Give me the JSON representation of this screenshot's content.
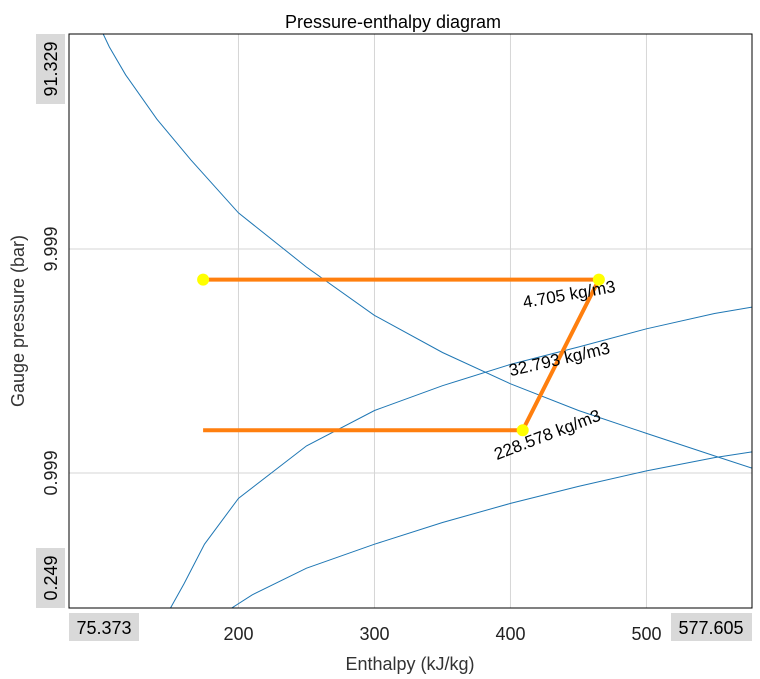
{
  "chart_data": {
    "type": "line",
    "title": "Pressure-enthalpy diagram",
    "xlabel": "Enthalpy (kJ/kg)",
    "ylabel": "Gauge pressure (bar)",
    "x_scale": "linear",
    "y_scale": "log",
    "xlim": [
      75.373,
      577.605
    ],
    "ylim": [
      0.249,
      91.329
    ],
    "x_ticks": [
      200,
      300,
      400,
      500
    ],
    "y_ticks": [
      0.999,
      9.999
    ],
    "x_range_labels": [
      "75.373",
      "577.605"
    ],
    "y_range_labels": [
      "0.249",
      "91.329"
    ],
    "grid": true,
    "colors": {
      "curves": "#1f77b4",
      "cycle": "#ff7f0e",
      "points": "#ffff00",
      "grid": "#d6d6d6",
      "range_box": "#d9d9d9"
    },
    "series": [
      {
        "name": "228.578 kg/m3",
        "kind": "isochore",
        "x": [
          100.5,
          105,
          117,
          140,
          165,
          200,
          250,
          300,
          350,
          400,
          450,
          500,
          550,
          577.6
        ],
        "y": [
          91.3,
          80,
          60,
          38,
          25,
          14.5,
          8.3,
          5.05,
          3.45,
          2.5,
          1.9,
          1.5,
          1.19,
          1.05
        ]
      },
      {
        "name": "32.793 kg/m3",
        "kind": "isochore",
        "x": [
          150,
          160,
          175,
          200,
          250,
          300,
          350,
          400,
          450,
          500,
          550,
          577.6
        ],
        "y": [
          0.249,
          0.32,
          0.48,
          0.77,
          1.32,
          1.9,
          2.45,
          3.05,
          3.65,
          4.4,
          5.15,
          5.5
        ]
      },
      {
        "name": "4.705 kg/m3",
        "kind": "isochore",
        "x": [
          195,
          210,
          250,
          300,
          350,
          400,
          450,
          500,
          550,
          577.6
        ],
        "y": [
          0.249,
          0.285,
          0.375,
          0.48,
          0.6,
          0.73,
          0.87,
          1.02,
          1.17,
          1.24
        ]
      },
      {
        "name": "cycle",
        "kind": "refrigeration-cycle",
        "closed": true,
        "x": [
          174,
          465,
          409,
          174
        ],
        "y": [
          7.3,
          7.3,
          1.55,
          1.55
        ]
      }
    ],
    "curve_labels": [
      {
        "text": "228.578 kg/m3",
        "x": 390,
        "y": 1.14,
        "angle": -21
      },
      {
        "text": "32.793 kg/m3",
        "x": 400,
        "y": 2.7,
        "angle": -13
      },
      {
        "text": "4.705 kg/m3",
        "x": 410,
        "y": 5.45,
        "angle": -10
      }
    ]
  }
}
